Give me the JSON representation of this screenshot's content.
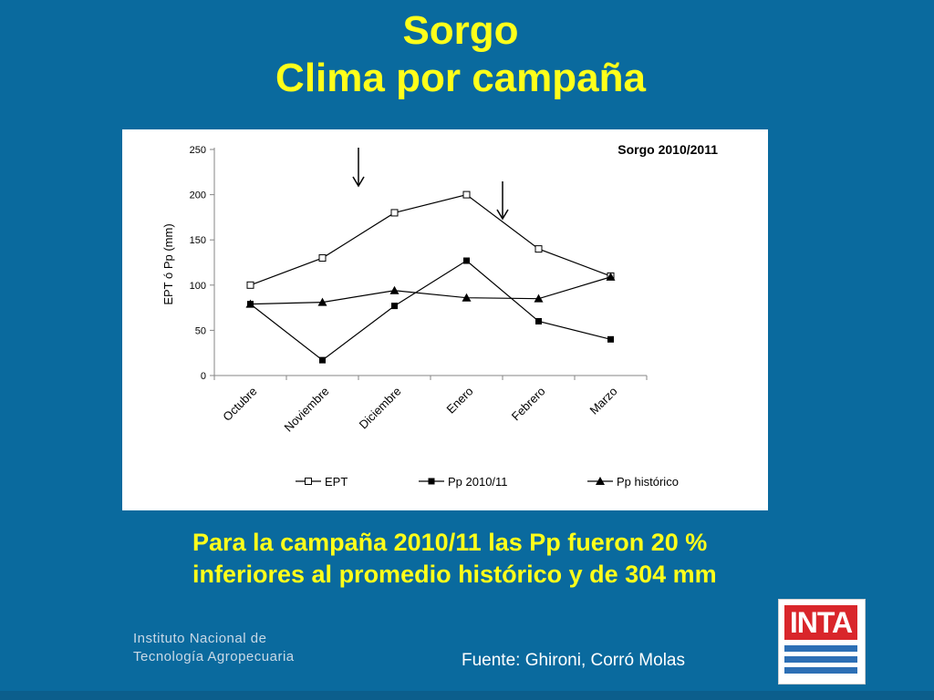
{
  "title_line1": "Sorgo",
  "title_line2": "Clima por campaña",
  "caption": "Para la campaña 2010/11 las Pp fueron 20 % inferiores al promedio histórico y de 304 mm",
  "source": "Fuente: Ghironi, Corró Molas",
  "institute": {
    "line1": "Instituto Nacional de",
    "line2": "Tecnología Agropecuaria",
    "logo_text": "INTA"
  },
  "colors": {
    "background": "#0a6a9e",
    "title": "#ffff1a",
    "logo_red": "#d9262b",
    "logo_blue": "#2d6fb5"
  },
  "chart_data": {
    "type": "line",
    "title": "Sorgo 2010/2011",
    "ylabel": "EPT ó Pp (mm)",
    "xlabel": "",
    "ylim": [
      0,
      250
    ],
    "yticks": [
      0,
      50,
      100,
      150,
      200,
      250
    ],
    "categories": [
      "Octubre",
      "Noviembre",
      "Diciembre",
      "Enero",
      "Febrero",
      "Marzo"
    ],
    "series": [
      {
        "name": "EPT",
        "marker": "open-square",
        "values": [
          100,
          130,
          180,
          200,
          140,
          110
        ]
      },
      {
        "name": "Pp 2010/11",
        "marker": "filled-square",
        "values": [
          79,
          17,
          77,
          127,
          60,
          40
        ]
      },
      {
        "name": "Pp histórico",
        "marker": "filled-triangle",
        "values": [
          79,
          81,
          94,
          86,
          85,
          109
        ]
      }
    ],
    "arrows": [
      "Noviembre-Diciembre",
      "Enero-Febrero"
    ],
    "legend": "bottom",
    "grid": false
  }
}
